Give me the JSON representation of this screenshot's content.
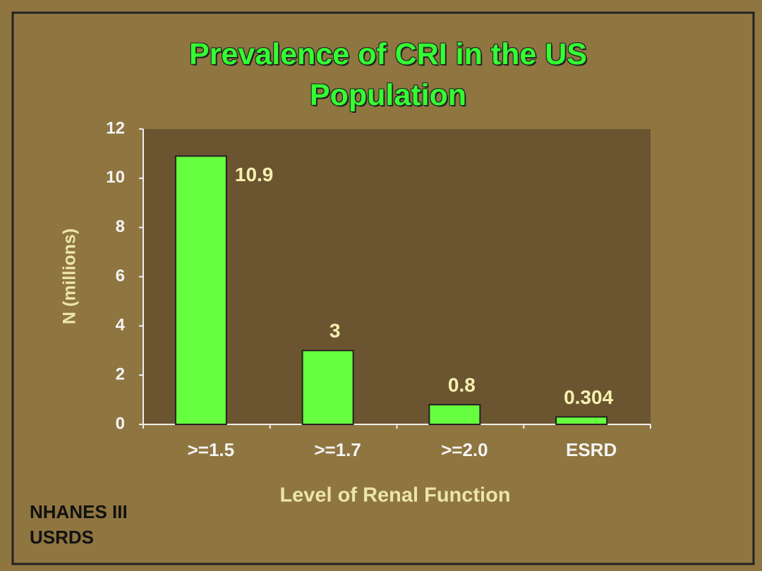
{
  "chart_data": {
    "type": "bar",
    "title": "Prevalence of CRI in the US Population",
    "categories": [
      ">=1.5",
      ">=1.7",
      ">=2.0",
      "ESRD"
    ],
    "values": [
      10.9,
      3,
      0.8,
      0.304
    ],
    "color": "#66ff3f",
    "ylim": [
      0,
      12
    ],
    "yticks": [
      0,
      2,
      4,
      6,
      8,
      10,
      12
    ],
    "y_label": "N (millions)",
    "x_label": "Level of Renal Function",
    "source": [
      "NHANES III",
      "USRDS"
    ]
  }
}
